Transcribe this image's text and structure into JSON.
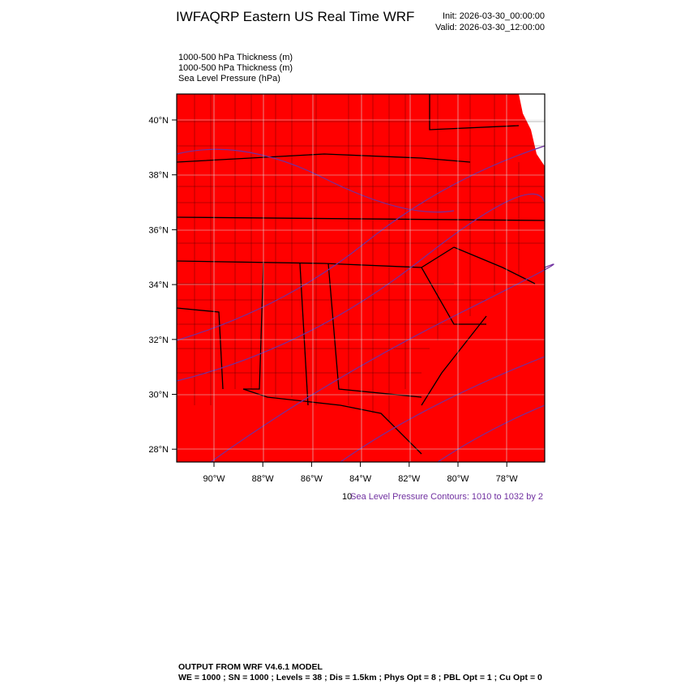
{
  "header": {
    "title": "IWFAQRP Eastern US Real Time WRF",
    "init": "Init: 2026-03-30_00:00:00",
    "valid": "Valid: 2026-03-30_12:00:00"
  },
  "fields": [
    "1000-500 hPa Thickness   (m)",
    "1000-500 hPa Thickness   (m)",
    "Sea Level Pressure   (hPa)"
  ],
  "map": {
    "lat_labels": [
      "40°N",
      "38°N",
      "36°N",
      "34°N",
      "32°N",
      "30°N",
      "28°N"
    ],
    "lon_labels": [
      "90°W",
      "88°W",
      "86°W",
      "84°W",
      "82°W",
      "80°W",
      "78°W"
    ]
  },
  "contour_note": {
    "prefix": "10",
    "text": "Sea Level Pressure Contours: 1010 to 1032 by 2"
  },
  "footer": {
    "line1": "OUTPUT FROM WRF V4.6.1 MODEL",
    "line2": "WE = 1000 ; SN = 1000 ; Levels = 38 ; Dis = 1.5km ; Phys Opt = 8 ; PBL Opt = 1 ; Cu Opt = 0"
  }
}
